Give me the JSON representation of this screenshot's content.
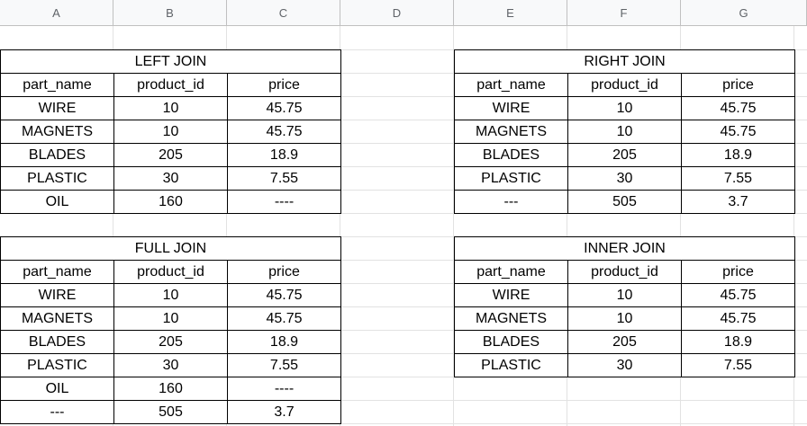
{
  "columns": [
    "A",
    "B",
    "C",
    "D",
    "E",
    "F",
    "G"
  ],
  "tables": [
    {
      "title": "LEFT JOIN",
      "headers": [
        "part_name",
        "product_id",
        "price"
      ],
      "rows": [
        [
          "WIRE",
          "10",
          "45.75"
        ],
        [
          "MAGNETS",
          "10",
          "45.75"
        ],
        [
          "BLADES",
          "205",
          "18.9"
        ],
        [
          "PLASTIC",
          "30",
          "7.55"
        ],
        [
          "OIL",
          "160",
          "----"
        ]
      ]
    },
    {
      "title": "RIGHT JOIN",
      "headers": [
        "part_name",
        "product_id",
        "price"
      ],
      "rows": [
        [
          "WIRE",
          "10",
          "45.75"
        ],
        [
          "MAGNETS",
          "10",
          "45.75"
        ],
        [
          "BLADES",
          "205",
          "18.9"
        ],
        [
          "PLASTIC",
          "30",
          "7.55"
        ],
        [
          "---",
          "505",
          "3.7"
        ]
      ]
    },
    {
      "title": "FULL JOIN",
      "headers": [
        "part_name",
        "product_id",
        "price"
      ],
      "rows": [
        [
          "WIRE",
          "10",
          "45.75"
        ],
        [
          "MAGNETS",
          "10",
          "45.75"
        ],
        [
          "BLADES",
          "205",
          "18.9"
        ],
        [
          "PLASTIC",
          "30",
          "7.55"
        ],
        [
          "OIL",
          "160",
          "----"
        ],
        [
          "---",
          "505",
          "3.7"
        ]
      ]
    },
    {
      "title": "INNER JOIN",
      "headers": [
        "part_name",
        "product_id",
        "price"
      ],
      "rows": [
        [
          "WIRE",
          "10",
          "45.75"
        ],
        [
          "MAGNETS",
          "10",
          "45.75"
        ],
        [
          "BLADES",
          "205",
          "18.9"
        ],
        [
          "PLASTIC",
          "30",
          "7.55"
        ]
      ]
    }
  ]
}
